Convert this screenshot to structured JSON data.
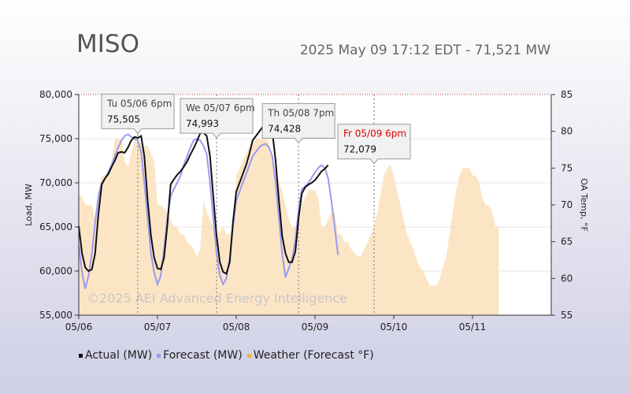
{
  "header": {
    "title": "MISO",
    "subtitle": "2025 May 09 17:12 EDT - 71,521 MW"
  },
  "colors": {
    "actual": "#111111",
    "forecast": "#9a9af2",
    "weather": "#fbe0bb",
    "tooltip_date": "#444444",
    "tooltip_date_current": "#dd0000"
  },
  "chart_data": {
    "type": "line",
    "x_axis": {
      "ticks": [
        "05/06",
        "05/07",
        "05/08",
        "05/09",
        "05/10",
        "05/11"
      ],
      "range_hours": [
        0,
        144
      ]
    },
    "y_left": {
      "label": "Load, MW",
      "range": [
        55000,
        80000
      ],
      "ticks": [
        "55,000",
        "60,000",
        "65,000",
        "70,000",
        "75,000",
        "80,000"
      ]
    },
    "y_right": {
      "label": "OA Temp, °F",
      "range": [
        55,
        85
      ],
      "ticks": [
        "55",
        "60",
        "65",
        "70",
        "75",
        "80",
        "85"
      ]
    },
    "watermark": "©2025  AEI  Advanced Energy Intelligence",
    "legend": [
      "Actual (MW)",
      "Forecast (MW)",
      "Weather (Forecast °F)"
    ],
    "series": [
      {
        "name": "Actual (MW)",
        "points": [
          [
            0,
            65100
          ],
          [
            1,
            62000
          ],
          [
            2,
            60400
          ],
          [
            3,
            60000
          ],
          [
            4,
            60200
          ],
          [
            5,
            62000
          ],
          [
            6,
            66500
          ],
          [
            7,
            69800
          ],
          [
            8,
            70500
          ],
          [
            9,
            71000
          ],
          [
            10,
            71800
          ],
          [
            11,
            72500
          ],
          [
            12,
            73400
          ],
          [
            13,
            73500
          ],
          [
            14,
            73400
          ],
          [
            15,
            74000
          ],
          [
            16,
            74800
          ],
          [
            17,
            75200
          ],
          [
            18,
            75100
          ],
          [
            19,
            75300
          ],
          [
            20,
            73000
          ],
          [
            21,
            68000
          ],
          [
            22,
            64000
          ],
          [
            23,
            61500
          ],
          [
            24,
            60300
          ],
          [
            25,
            60200
          ],
          [
            26,
            61500
          ],
          [
            27,
            65200
          ],
          [
            28,
            69800
          ],
          [
            29,
            70400
          ],
          [
            30,
            70900
          ],
          [
            31,
            71300
          ],
          [
            32,
            71800
          ],
          [
            33,
            72400
          ],
          [
            34,
            73200
          ],
          [
            35,
            73900
          ],
          [
            36,
            74700
          ],
          [
            37,
            75600
          ],
          [
            38,
            75700
          ],
          [
            39,
            75300
          ],
          [
            40,
            73000
          ],
          [
            41,
            68500
          ],
          [
            42,
            64000
          ],
          [
            43,
            61000
          ],
          [
            44,
            59900
          ],
          [
            45,
            59700
          ],
          [
            46,
            61000
          ],
          [
            47,
            65500
          ],
          [
            48,
            69000
          ],
          [
            49,
            70000
          ],
          [
            50,
            71000
          ],
          [
            51,
            72000
          ],
          [
            52,
            73300
          ],
          [
            53,
            74800
          ],
          [
            54,
            75300
          ],
          [
            55,
            75800
          ],
          [
            56,
            76300
          ],
          [
            57,
            76500
          ],
          [
            58,
            76300
          ],
          [
            59,
            75800
          ],
          [
            60,
            72500
          ],
          [
            61,
            68000
          ],
          [
            62,
            64000
          ],
          [
            63,
            62000
          ],
          [
            64,
            61000
          ],
          [
            65,
            61000
          ],
          [
            66,
            62200
          ],
          [
            67,
            66000
          ],
          [
            68,
            68800
          ],
          [
            69,
            69500
          ],
          [
            70,
            69800
          ],
          [
            71,
            70000
          ],
          [
            72,
            70300
          ],
          [
            73,
            70800
          ],
          [
            74,
            71300
          ],
          [
            75,
            71600
          ],
          [
            76,
            72000
          ]
        ]
      },
      {
        "name": "Forecast (MW)",
        "points": [
          [
            0,
            63000
          ],
          [
            1,
            59800
          ],
          [
            2,
            58000
          ],
          [
            3,
            59500
          ],
          [
            4,
            62000
          ],
          [
            5,
            65500
          ],
          [
            6,
            68500
          ],
          [
            7,
            70000
          ],
          [
            8,
            70500
          ],
          [
            9,
            71200
          ],
          [
            10,
            72000
          ],
          [
            11,
            73000
          ],
          [
            12,
            74000
          ],
          [
            13,
            74800
          ],
          [
            14,
            75300
          ],
          [
            15,
            75500
          ],
          [
            16,
            75200
          ],
          [
            17,
            75000
          ],
          [
            18,
            74800
          ],
          [
            19,
            73500
          ],
          [
            20,
            70000
          ],
          [
            21,
            66000
          ],
          [
            22,
            62000
          ],
          [
            23,
            59800
          ],
          [
            24,
            58500
          ],
          [
            25,
            59500
          ],
          [
            26,
            62500
          ],
          [
            27,
            66000
          ],
          [
            28,
            68500
          ],
          [
            29,
            69300
          ],
          [
            30,
            70000
          ],
          [
            31,
            70800
          ],
          [
            32,
            72000
          ],
          [
            33,
            73000
          ],
          [
            34,
            74000
          ],
          [
            35,
            74800
          ],
          [
            36,
            75000
          ],
          [
            37,
            74800
          ],
          [
            38,
            74200
          ],
          [
            39,
            73300
          ],
          [
            40,
            70000
          ],
          [
            41,
            66000
          ],
          [
            42,
            62000
          ],
          [
            43,
            59500
          ],
          [
            44,
            58500
          ],
          [
            45,
            59200
          ],
          [
            46,
            61500
          ],
          [
            47,
            65000
          ],
          [
            48,
            68000
          ],
          [
            49,
            69000
          ],
          [
            50,
            70000
          ],
          [
            51,
            71000
          ],
          [
            52,
            72000
          ],
          [
            53,
            73000
          ],
          [
            54,
            73500
          ],
          [
            55,
            74000
          ],
          [
            56,
            74300
          ],
          [
            57,
            74400
          ],
          [
            58,
            74000
          ],
          [
            59,
            73000
          ],
          [
            60,
            70000
          ],
          [
            61,
            66000
          ],
          [
            62,
            62000
          ],
          [
            63,
            59300
          ],
          [
            64,
            60300
          ],
          [
            65,
            61300
          ],
          [
            66,
            63500
          ],
          [
            67,
            67000
          ],
          [
            68,
            69300
          ],
          [
            69,
            69600
          ],
          [
            70,
            70000
          ],
          [
            71,
            70600
          ],
          [
            72,
            71200
          ],
          [
            73,
            71700
          ],
          [
            74,
            72000
          ],
          [
            75,
            71700
          ],
          [
            76,
            70500
          ],
          [
            77,
            68000
          ],
          [
            78,
            65000
          ],
          [
            79,
            61800
          ]
        ]
      },
      {
        "name": "Weather (Forecast °F)",
        "axis": "right",
        "points": [
          [
            0,
            71.5
          ],
          [
            1,
            71
          ],
          [
            2,
            70
          ],
          [
            3,
            70
          ],
          [
            4,
            70
          ],
          [
            5,
            68
          ],
          [
            6,
            72
          ],
          [
            7,
            74
          ],
          [
            8,
            74
          ],
          [
            9,
            74
          ],
          [
            10,
            76
          ],
          [
            11,
            79
          ],
          [
            12,
            79
          ],
          [
            13,
            79
          ],
          [
            14,
            76
          ],
          [
            15,
            75
          ],
          [
            16,
            77
          ],
          [
            17,
            79
          ],
          [
            18,
            78.5
          ],
          [
            19,
            78.5
          ],
          [
            20,
            78
          ],
          [
            21,
            78
          ],
          [
            22,
            77
          ],
          [
            23,
            76
          ],
          [
            24,
            70
          ],
          [
            25,
            70
          ],
          [
            26,
            69.5
          ],
          [
            27,
            69
          ],
          [
            28,
            68
          ],
          [
            29,
            67
          ],
          [
            30,
            67
          ],
          [
            31,
            66
          ],
          [
            32,
            66
          ],
          [
            33,
            65
          ],
          [
            34,
            64.5
          ],
          [
            35,
            64
          ],
          [
            36,
            63
          ],
          [
            37,
            64
          ],
          [
            38,
            70.5
          ],
          [
            39,
            69
          ],
          [
            40,
            68
          ],
          [
            41,
            67
          ],
          [
            42,
            66
          ],
          [
            43,
            66.5
          ],
          [
            44,
            67
          ],
          [
            45,
            66
          ],
          [
            46,
            66
          ],
          [
            47,
            67
          ],
          [
            48,
            74
          ],
          [
            49,
            75
          ],
          [
            50,
            76
          ],
          [
            51,
            77
          ],
          [
            52,
            78
          ],
          [
            53,
            78.5
          ],
          [
            54,
            79
          ],
          [
            55,
            79
          ],
          [
            56,
            79
          ],
          [
            57,
            79
          ],
          [
            58,
            78.5
          ],
          [
            59,
            76
          ],
          [
            60,
            75
          ],
          [
            61,
            73
          ],
          [
            62,
            72
          ],
          [
            63,
            70
          ],
          [
            64,
            68
          ],
          [
            65,
            67
          ],
          [
            66,
            67
          ],
          [
            67,
            67
          ],
          [
            68,
            70
          ],
          [
            69,
            71
          ],
          [
            70,
            72
          ],
          [
            71,
            72
          ],
          [
            72,
            72
          ],
          [
            73,
            71
          ],
          [
            74,
            67
          ],
          [
            75,
            67
          ],
          [
            76,
            68
          ],
          [
            77,
            69
          ],
          [
            78,
            69
          ],
          [
            79,
            66
          ],
          [
            80,
            66
          ],
          [
            81,
            65
          ],
          [
            82,
            65
          ],
          [
            83,
            64
          ],
          [
            84,
            63.5
          ],
          [
            85,
            63
          ],
          [
            86,
            63
          ],
          [
            87,
            64
          ],
          [
            88,
            65
          ],
          [
            89,
            66
          ],
          [
            90,
            67
          ],
          [
            91,
            69
          ],
          [
            92,
            71.5
          ],
          [
            93,
            74
          ],
          [
            94,
            75
          ],
          [
            95,
            75.5
          ],
          [
            96,
            74
          ],
          [
            97,
            72
          ],
          [
            98,
            70
          ],
          [
            99,
            68
          ],
          [
            100,
            66
          ],
          [
            101,
            65
          ],
          [
            102,
            64
          ],
          [
            103,
            62.5
          ],
          [
            104,
            61.5
          ],
          [
            105,
            61
          ],
          [
            106,
            60
          ],
          [
            107,
            59
          ],
          [
            108,
            59
          ],
          [
            109,
            59
          ],
          [
            110,
            60
          ],
          [
            111,
            61.5
          ],
          [
            112,
            63
          ],
          [
            113,
            66
          ],
          [
            114,
            69
          ],
          [
            115,
            72
          ],
          [
            116,
            74
          ],
          [
            117,
            75
          ],
          [
            118,
            75
          ],
          [
            119,
            75
          ],
          [
            120,
            74
          ],
          [
            121,
            74
          ],
          [
            122,
            73
          ],
          [
            123,
            71
          ],
          [
            124,
            70
          ],
          [
            125,
            70
          ],
          [
            126,
            69
          ],
          [
            127,
            67
          ],
          [
            128,
            67
          ]
        ]
      }
    ],
    "peaks": [
      {
        "x": 18,
        "date": "Tu 05/06 6pm",
        "value": "75,505",
        "current": false
      },
      {
        "x": 42,
        "date": "We 05/07 6pm",
        "value": "74,993",
        "current": false
      },
      {
        "x": 67,
        "date": "Th 05/08 7pm",
        "value": "74,428",
        "current": false
      },
      {
        "x": 90,
        "date": "Fr 05/09 6pm",
        "value": "72,079",
        "current": true
      }
    ]
  }
}
